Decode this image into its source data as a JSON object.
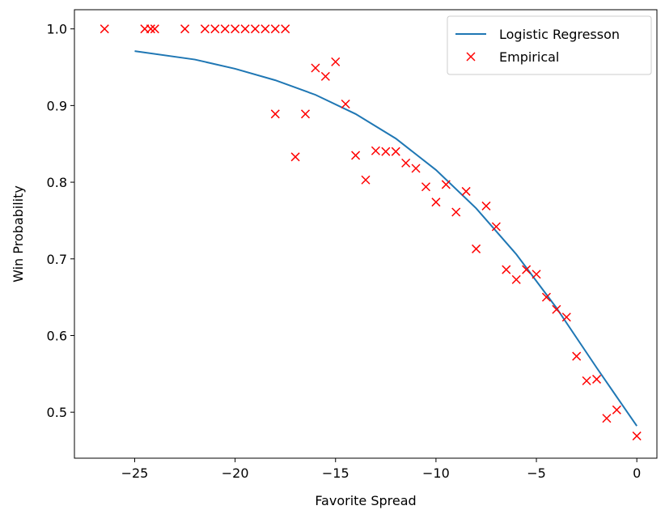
{
  "chart_data": {
    "type": "line+scatter",
    "xlabel": "Favorite Spread",
    "ylabel": "Win Probability",
    "xlim": [
      -28,
      1
    ],
    "ylim": [
      0.44,
      1.025
    ],
    "xticks": [
      -25,
      -20,
      -15,
      -10,
      -5,
      0
    ],
    "yticks": [
      0.5,
      0.6,
      0.7,
      0.8,
      0.9,
      1.0
    ],
    "legend": {
      "placement": "top-right",
      "entries": [
        "Logistic Regresson",
        "Empirical"
      ]
    },
    "series": [
      {
        "name": "Logistic Regresson",
        "kind": "line",
        "color": "#1f77b4",
        "x": [
          -25,
          -22,
          -20,
          -18,
          -16,
          -14,
          -12,
          -10,
          -8,
          -6,
          -4,
          -2,
          0
        ],
        "y": [
          0.971,
          0.96,
          0.948,
          0.933,
          0.914,
          0.889,
          0.857,
          0.816,
          0.766,
          0.706,
          0.636,
          0.558,
          0.482
        ]
      },
      {
        "name": "Empirical",
        "kind": "scatter",
        "marker": "x",
        "color": "#ff0000",
        "x": [
          -26.5,
          -24.5,
          -24.2,
          -24.0,
          -22.5,
          -21.5,
          -21.0,
          -20.5,
          -20.0,
          -19.5,
          -19.0,
          -18.5,
          -18.0,
          -17.5,
          -18.0,
          -17.0,
          -16.5,
          -16.0,
          -15.5,
          -15.0,
          -14.5,
          -14.0,
          -13.5,
          -13.0,
          -12.5,
          -12.0,
          -11.5,
          -11.0,
          -10.5,
          -10.0,
          -9.5,
          -9.0,
          -8.5,
          -8.0,
          -7.5,
          -7.0,
          -6.5,
          -6.0,
          -5.5,
          -5.0,
          -4.5,
          -4.0,
          -3.5,
          -3.0,
          -2.5,
          -2.0,
          -1.5,
          -1.0,
          0.0
        ],
        "y": [
          1.0,
          1.0,
          1.0,
          1.0,
          1.0,
          1.0,
          1.0,
          1.0,
          1.0,
          1.0,
          1.0,
          1.0,
          1.0,
          1.0,
          0.889,
          0.833,
          0.889,
          0.949,
          0.938,
          0.957,
          0.902,
          0.835,
          0.803,
          0.841,
          0.84,
          0.84,
          0.825,
          0.818,
          0.794,
          0.774,
          0.797,
          0.761,
          0.788,
          0.713,
          0.769,
          0.742,
          0.686,
          0.673,
          0.686,
          0.68,
          0.65,
          0.634,
          0.624,
          0.573,
          0.541,
          0.543,
          0.492,
          0.503,
          0.469
        ]
      }
    ]
  }
}
